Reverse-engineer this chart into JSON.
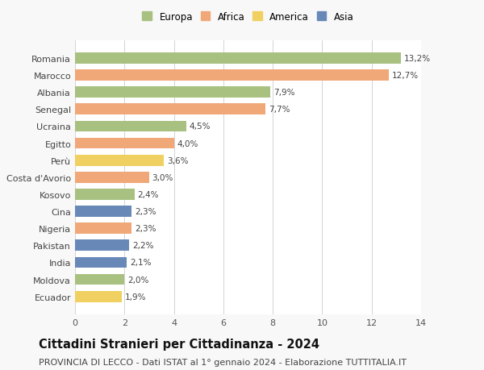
{
  "countries": [
    "Romania",
    "Marocco",
    "Albania",
    "Senegal",
    "Ucraina",
    "Egitto",
    "Perù",
    "Costa d'Avorio",
    "Kosovo",
    "Cina",
    "Nigeria",
    "Pakistan",
    "India",
    "Moldova",
    "Ecuador"
  ],
  "values": [
    13.2,
    12.7,
    7.9,
    7.7,
    4.5,
    4.0,
    3.6,
    3.0,
    2.4,
    2.3,
    2.3,
    2.2,
    2.1,
    2.0,
    1.9
  ],
  "labels": [
    "13,2%",
    "12,7%",
    "7,9%",
    "7,7%",
    "4,5%",
    "4,0%",
    "3,6%",
    "3,0%",
    "2,4%",
    "2,3%",
    "2,3%",
    "2,2%",
    "2,1%",
    "2,0%",
    "1,9%"
  ],
  "colors": [
    "#a8c080",
    "#f0a878",
    "#a8c080",
    "#f0a878",
    "#a8c080",
    "#f0a878",
    "#f0d060",
    "#f0a878",
    "#a8c080",
    "#6888b8",
    "#f0a878",
    "#6888b8",
    "#6888b8",
    "#a8c080",
    "#f0d060"
  ],
  "legend_labels": [
    "Europa",
    "Africa",
    "America",
    "Asia"
  ],
  "legend_colors": [
    "#a8c080",
    "#f0a878",
    "#f0d060",
    "#6888b8"
  ],
  "title": "Cittadini Stranieri per Cittadinanza - 2024",
  "subtitle": "PROVINCIA DI LECCO - Dati ISTAT al 1° gennaio 2024 - Elaborazione TUTTITALIA.IT",
  "xlim": [
    0,
    14
  ],
  "xticks": [
    0,
    2,
    4,
    6,
    8,
    10,
    12,
    14
  ],
  "bg_color": "#f8f8f8",
  "plot_bg_color": "#ffffff",
  "title_fontsize": 10.5,
  "subtitle_fontsize": 8,
  "bar_label_fontsize": 7.5,
  "tick_fontsize": 8,
  "legend_fontsize": 8.5
}
